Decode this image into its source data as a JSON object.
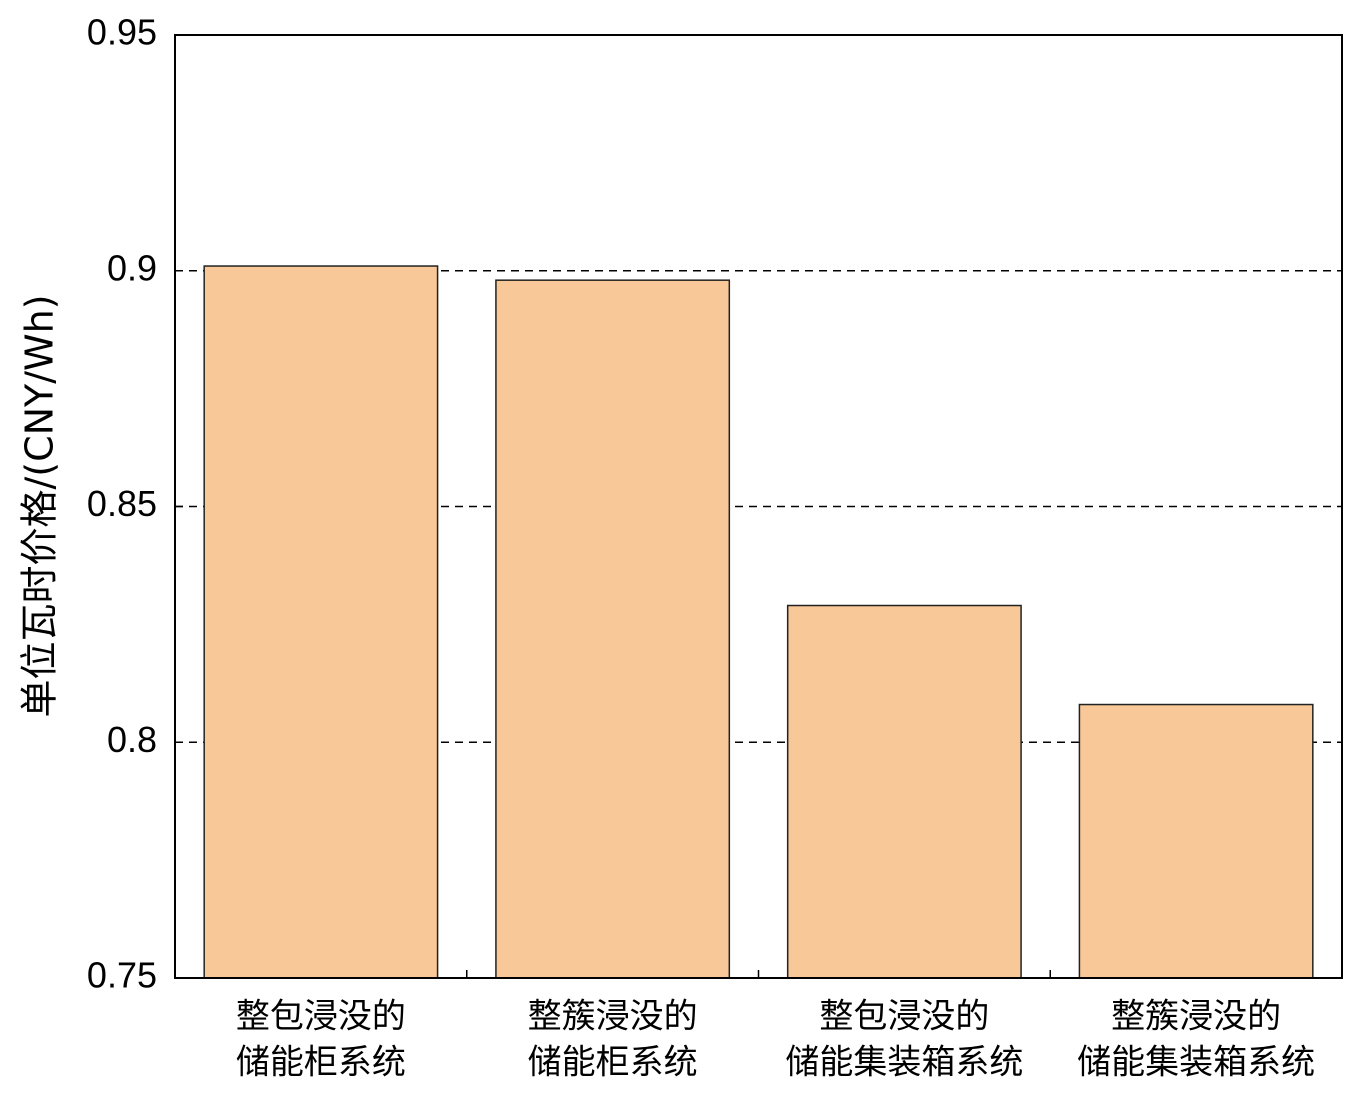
{
  "chart_data": {
    "type": "bar",
    "y_label": "单位瓦时价格/(CNY/Wh)",
    "categories": [
      [
        "整包浸没的",
        "储能柜系统"
      ],
      [
        "整簇浸没的",
        "储能柜系统"
      ],
      [
        "整包浸没的",
        "储能集装箱系统"
      ],
      [
        "整簇浸没的",
        "储能集装箱系统"
      ]
    ],
    "values": [
      0.901,
      0.898,
      0.829,
      0.808
    ],
    "color": "#f9c898",
    "ylim": [
      0.75,
      0.95
    ],
    "yticks": [
      0.75,
      0.8,
      0.85,
      0.9,
      0.95
    ],
    "grid": true
  }
}
